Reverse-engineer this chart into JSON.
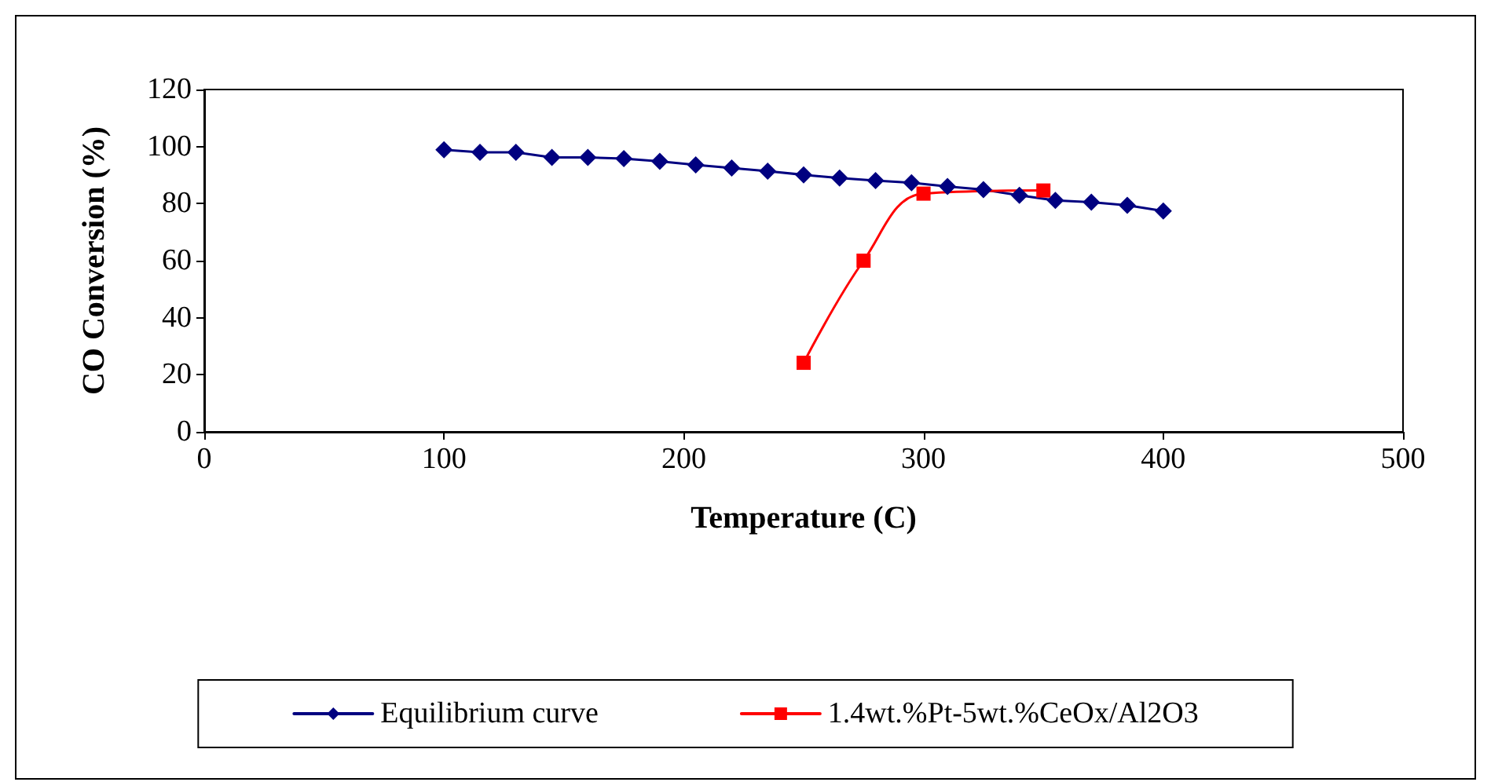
{
  "chart_data": {
    "type": "line",
    "xlabel": "Temperature (C)",
    "ylabel": "CO Conversion (%)",
    "xlim": [
      0,
      500
    ],
    "xticks": [
      0,
      100,
      200,
      300,
      400,
      500
    ],
    "ylim": [
      0,
      120
    ],
    "yticks": [
      0,
      20,
      40,
      60,
      80,
      100,
      120
    ],
    "grid": false,
    "legend": "bottom",
    "line_style": "solid",
    "series": [
      {
        "name": "Equilibrium curve",
        "color": "#000080",
        "marker": "diamond",
        "x": [
          100,
          115,
          130,
          145,
          160,
          175,
          190,
          205,
          220,
          235,
          250,
          265,
          280,
          295,
          310,
          325,
          340,
          355,
          370,
          385,
          400
        ],
        "values": [
          98.9,
          98.0,
          98.0,
          96.2,
          96.2,
          95.8,
          94.8,
          93.6,
          92.5,
          91.4,
          90.1,
          89.0,
          88.1,
          87.3,
          86.0,
          84.9,
          82.9,
          81.1,
          80.5,
          79.4,
          77.4
        ]
      },
      {
        "name": "1.4wt.%Pt-5wt.%CeOx/Al2O3",
        "color": "#ff0000",
        "marker": "square",
        "x": [
          250,
          275,
          300,
          350
        ],
        "values": [
          24.2,
          60,
          83.5,
          84.6
        ]
      }
    ]
  }
}
